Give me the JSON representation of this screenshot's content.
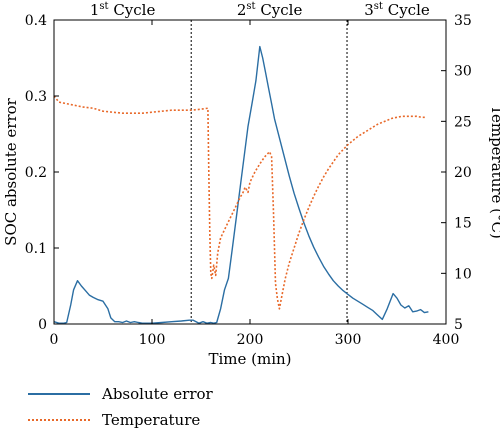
{
  "chart_data": {
    "type": "line",
    "xlabel": "Time (min)",
    "ylabel_left": "SOC absolute error",
    "ylabel_right": "Temperature (°C)",
    "xlim": [
      0,
      400
    ],
    "ylim_left": [
      0,
      0.4
    ],
    "ylim_right": [
      5,
      35
    ],
    "x_ticks": [
      "0",
      "100",
      "200",
      "300",
      "400"
    ],
    "y_left_ticks": [
      "0",
      "0.1",
      "0.2",
      "0.3",
      "0.4"
    ],
    "y_right_ticks": [
      "5",
      "10",
      "15",
      "20",
      "25",
      "30",
      "35"
    ],
    "cycle_dividers": [
      140,
      299
    ],
    "cycles": [
      {
        "base": "1",
        "sup": "st",
        "word": " Cycle",
        "x_center": 70
      },
      {
        "base": "2",
        "sup": "st",
        "word": " Cycle",
        "x_center": 220
      },
      {
        "base": "3",
        "sup": "st",
        "word": " Cycle",
        "x_center": 350
      }
    ],
    "legend_position": "bottom-left",
    "series": [
      {
        "name": "Absolute error",
        "axis": "left",
        "color": "#2b6ea3",
        "style": "solid",
        "points": [
          [
            0,
            0.003
          ],
          [
            5,
            0.001
          ],
          [
            10,
            0.001
          ],
          [
            13,
            0.002
          ],
          [
            17,
            0.025
          ],
          [
            20,
            0.045
          ],
          [
            24,
            0.057
          ],
          [
            28,
            0.05
          ],
          [
            32,
            0.044
          ],
          [
            36,
            0.038
          ],
          [
            40,
            0.035
          ],
          [
            45,
            0.032
          ],
          [
            50,
            0.03
          ],
          [
            55,
            0.02
          ],
          [
            58,
            0.008
          ],
          [
            62,
            0.003
          ],
          [
            66,
            0.003
          ],
          [
            70,
            0.002
          ],
          [
            74,
            0.004
          ],
          [
            78,
            0.002
          ],
          [
            82,
            0.003
          ],
          [
            86,
            0.002
          ],
          [
            90,
            0.001
          ],
          [
            100,
            0.001
          ],
          [
            110,
            0.002
          ],
          [
            120,
            0.003
          ],
          [
            130,
            0.004
          ],
          [
            138,
            0.005
          ],
          [
            142,
            0.005
          ],
          [
            145,
            0.003
          ],
          [
            148,
            0.001
          ],
          [
            152,
            0.003
          ],
          [
            156,
            0.001
          ],
          [
            160,
            0.002
          ],
          [
            163,
            0.001
          ],
          [
            166,
            0.002
          ],
          [
            170,
            0.02
          ],
          [
            174,
            0.045
          ],
          [
            178,
            0.06
          ],
          [
            182,
            0.1
          ],
          [
            186,
            0.14
          ],
          [
            190,
            0.18
          ],
          [
            194,
            0.22
          ],
          [
            198,
            0.26
          ],
          [
            202,
            0.29
          ],
          [
            206,
            0.32
          ],
          [
            210,
            0.365
          ],
          [
            213,
            0.35
          ],
          [
            216,
            0.33
          ],
          [
            219,
            0.31
          ],
          [
            222,
            0.29
          ],
          [
            225,
            0.27
          ],
          [
            230,
            0.245
          ],
          [
            235,
            0.22
          ],
          [
            240,
            0.195
          ],
          [
            245,
            0.172
          ],
          [
            250,
            0.152
          ],
          [
            255,
            0.133
          ],
          [
            260,
            0.116
          ],
          [
            265,
            0.101
          ],
          [
            270,
            0.088
          ],
          [
            275,
            0.076
          ],
          [
            280,
            0.066
          ],
          [
            285,
            0.057
          ],
          [
            290,
            0.05
          ],
          [
            295,
            0.044
          ],
          [
            300,
            0.039
          ],
          [
            305,
            0.034
          ],
          [
            310,
            0.03
          ],
          [
            315,
            0.026
          ],
          [
            320,
            0.022
          ],
          [
            325,
            0.018
          ],
          [
            330,
            0.012
          ],
          [
            335,
            0.006
          ],
          [
            340,
            0.02
          ],
          [
            346,
            0.04
          ],
          [
            350,
            0.034
          ],
          [
            354,
            0.025
          ],
          [
            358,
            0.021
          ],
          [
            362,
            0.024
          ],
          [
            366,
            0.016
          ],
          [
            370,
            0.017
          ],
          [
            374,
            0.019
          ],
          [
            378,
            0.015
          ],
          [
            382,
            0.016
          ]
        ]
      },
      {
        "name": "Temperature",
        "axis": "right",
        "color": "#e8692a",
        "style": "dotted",
        "points": [
          [
            0,
            27.5
          ],
          [
            5,
            26.9
          ],
          [
            10,
            26.8
          ],
          [
            20,
            26.6
          ],
          [
            30,
            26.4
          ],
          [
            40,
            26.3
          ],
          [
            50,
            26.0
          ],
          [
            60,
            25.9
          ],
          [
            70,
            25.8
          ],
          [
            80,
            25.8
          ],
          [
            90,
            25.8
          ],
          [
            100,
            25.9
          ],
          [
            110,
            26.0
          ],
          [
            120,
            26.1
          ],
          [
            130,
            26.1
          ],
          [
            140,
            26.1
          ],
          [
            150,
            26.2
          ],
          [
            157,
            26.3
          ],
          [
            158,
            20
          ],
          [
            159,
            14
          ],
          [
            160,
            10
          ],
          [
            161,
            9.5
          ],
          [
            163,
            10.8
          ],
          [
            165,
            9.8
          ],
          [
            167,
            12
          ],
          [
            170,
            13.5
          ],
          [
            175,
            14.5
          ],
          [
            180,
            15.5
          ],
          [
            185,
            16.5
          ],
          [
            190,
            17.5
          ],
          [
            193,
            18
          ],
          [
            195,
            18.5
          ],
          [
            198,
            18
          ],
          [
            200,
            19
          ],
          [
            205,
            20
          ],
          [
            210,
            20.8
          ],
          [
            215,
            21.5
          ],
          [
            220,
            22
          ],
          [
            222,
            21.5
          ],
          [
            224,
            16
          ],
          [
            226,
            9
          ],
          [
            228,
            7.5
          ],
          [
            230,
            6.5
          ],
          [
            233,
            8
          ],
          [
            236,
            9.5
          ],
          [
            240,
            11
          ],
          [
            245,
            12.5
          ],
          [
            250,
            14
          ],
          [
            255,
            15.3
          ],
          [
            260,
            16.5
          ],
          [
            265,
            17.6
          ],
          [
            270,
            18.6
          ],
          [
            275,
            19.5
          ],
          [
            280,
            20.3
          ],
          [
            285,
            21
          ],
          [
            290,
            21.7
          ],
          [
            295,
            22.2
          ],
          [
            300,
            22.7
          ],
          [
            305,
            23.1
          ],
          [
            310,
            23.5
          ],
          [
            315,
            23.8
          ],
          [
            320,
            24.1
          ],
          [
            325,
            24.4
          ],
          [
            330,
            24.7
          ],
          [
            335,
            24.9
          ],
          [
            340,
            25.1
          ],
          [
            345,
            25.3
          ],
          [
            350,
            25.4
          ],
          [
            355,
            25.5
          ],
          [
            360,
            25.5
          ],
          [
            365,
            25.5
          ],
          [
            370,
            25.5
          ],
          [
            375,
            25.4
          ],
          [
            380,
            25.4
          ]
        ]
      }
    ]
  }
}
